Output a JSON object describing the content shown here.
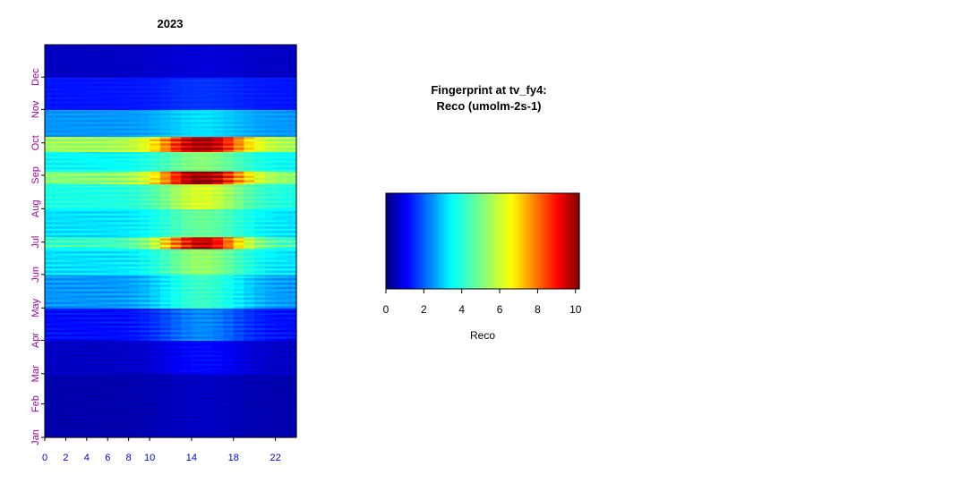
{
  "chart_data": [
    {
      "type": "heatmap",
      "title": "2023",
      "xlabel": "",
      "ylabel": "",
      "x_ticks": [
        "0",
        "2",
        "4",
        "6",
        "8",
        "10",
        "14",
        "18",
        "22"
      ],
      "x_tick_values": [
        0,
        2,
        4,
        6,
        8,
        10,
        14,
        18,
        22
      ],
      "xlim": [
        0,
        24
      ],
      "y_ticks": [
        "Jan",
        "Feb",
        "Mar",
        "Apr",
        "May",
        "Jun",
        "Jul",
        "Aug",
        "Sep",
        "Oct",
        "Nov",
        "Dec"
      ],
      "y_tick_days": [
        1,
        32,
        60,
        91,
        121,
        152,
        182,
        213,
        244,
        274,
        305,
        335
      ],
      "ylim": [
        1,
        365
      ],
      "colormap": "jet",
      "value_range": [
        0,
        10.2
      ],
      "x_tick_color": "#0000cc",
      "y_tick_color": "#990099",
      "bands": [
        {
          "day_start": 1,
          "day_end": 60,
          "night": 0.4,
          "peak": 0.6
        },
        {
          "day_start": 60,
          "day_end": 91,
          "night": 0.6,
          "peak": 1.2
        },
        {
          "day_start": 91,
          "day_end": 121,
          "night": 1.2,
          "peak": 2.4
        },
        {
          "day_start": 121,
          "day_end": 152,
          "night": 2.5,
          "peak": 4.2
        },
        {
          "day_start": 152,
          "day_end": 176,
          "night": 3.2,
          "peak": 5.4
        },
        {
          "day_start": 176,
          "day_end": 187,
          "night": 4.2,
          "peak": 9.6
        },
        {
          "day_start": 187,
          "day_end": 213,
          "night": 3.2,
          "peak": 4.8
        },
        {
          "day_start": 213,
          "day_end": 236,
          "night": 3.8,
          "peak": 6.2
        },
        {
          "day_start": 236,
          "day_end": 248,
          "night": 5.2,
          "peak": 10.2
        },
        {
          "day_start": 248,
          "day_end": 266,
          "night": 3.5,
          "peak": 5.2
        },
        {
          "day_start": 266,
          "day_end": 280,
          "night": 5.5,
          "peak": 10.0
        },
        {
          "day_start": 280,
          "day_end": 305,
          "night": 2.5,
          "peak": 3.2
        },
        {
          "day_start": 305,
          "day_end": 335,
          "night": 1.3,
          "peak": 1.6
        },
        {
          "day_start": 335,
          "day_end": 365,
          "night": 0.6,
          "peak": 0.8
        }
      ]
    },
    {
      "type": "colorbar",
      "title_line1": "Fingerprint at tv_fy4:",
      "title_line2": "Reco (umolm-2s-1)",
      "xlabel": "Reco",
      "ticks": [
        "0",
        "2",
        "4",
        "6",
        "8",
        "10"
      ],
      "tick_values": [
        0,
        2,
        4,
        6,
        8,
        10
      ],
      "range": [
        0,
        10.2
      ],
      "colormap": "jet"
    }
  ]
}
